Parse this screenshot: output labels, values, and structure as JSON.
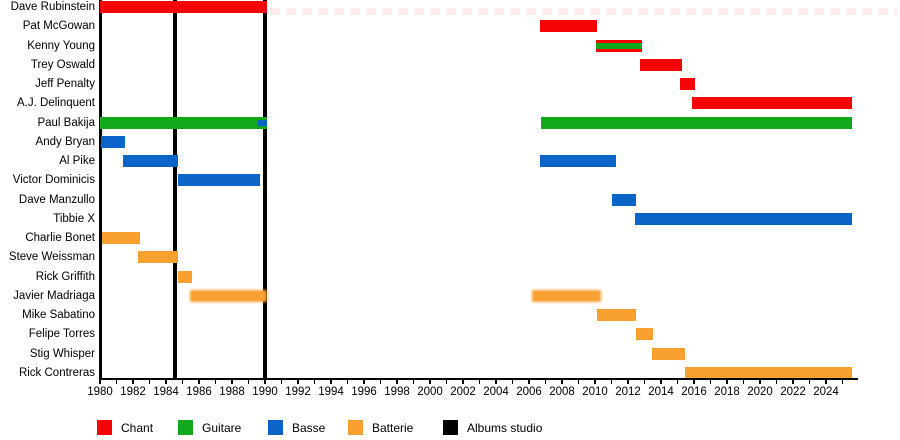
{
  "chart_data": {
    "type": "gantt",
    "description": "Band members timeline (French labels), roles vs years",
    "x_axis": {
      "min": 1980,
      "max": 2025.6,
      "tick_interval": 1,
      "label_interval": 2,
      "tick_labels": [
        "1980",
        "1982",
        "1984",
        "1986",
        "1988",
        "1990",
        "1992",
        "1994",
        "1996",
        "1998",
        "2000",
        "2002",
        "2004",
        "2006",
        "2008",
        "2010",
        "2012",
        "2014",
        "2016",
        "2018",
        "2020",
        "2022",
        "2024"
      ]
    },
    "colors": {
      "chant": "#f40404",
      "guitare": "#11a81c",
      "basse": "#0c64c8",
      "batterie": "#f8a030",
      "albums": "#000000",
      "ghost": "#fcecec"
    },
    "album_lines": [
      1984.55,
      1990
    ],
    "members": [
      {
        "name": "Dave Rubinstein",
        "segments": [
          {
            "role": "chant",
            "start": 1980,
            "end": 1990.15
          }
        ],
        "ghost": {
          "start": 1990.3,
          "end": 2028.3
        }
      },
      {
        "name": "Pat McGowan",
        "segments": [
          {
            "role": "chant",
            "start": 2006.65,
            "end": 2010.15
          }
        ]
      },
      {
        "name": "Kenny Young",
        "segments": [
          {
            "role": "chant_guitare",
            "start": 2010.05,
            "end": 2012.85
          }
        ]
      },
      {
        "name": "Trey Oswald",
        "segments": [
          {
            "role": "chant",
            "start": 2012.7,
            "end": 2015.3
          }
        ]
      },
      {
        "name": "Jeff Penalty",
        "segments": [
          {
            "role": "chant",
            "start": 2015.15,
            "end": 2016.05
          }
        ]
      },
      {
        "name": "A.J. Delinquent",
        "segments": [
          {
            "role": "chant",
            "start": 2015.9,
            "end": 2025.55
          }
        ]
      },
      {
        "name": "Paul Bakija",
        "segments": [
          {
            "role": "guitare",
            "start": 1980,
            "end": 1990.15
          },
          {
            "role": "basse",
            "start": 1989.55,
            "end": 1990.15,
            "inset": true
          },
          {
            "role": "guitare",
            "start": 2006.7,
            "end": 2025.55
          }
        ]
      },
      {
        "name": "Andy Bryan",
        "segments": [
          {
            "role": "basse",
            "start": 1980.05,
            "end": 1981.5
          }
        ]
      },
      {
        "name": "Al Pike",
        "segments": [
          {
            "role": "basse",
            "start": 1981.4,
            "end": 1984.75
          },
          {
            "role": "basse",
            "start": 2006.65,
            "end": 2011.25
          }
        ]
      },
      {
        "name": "Victor Dominicis",
        "segments": [
          {
            "role": "basse",
            "start": 1984.7,
            "end": 1989.7
          }
        ]
      },
      {
        "name": "Dave Manzullo",
        "segments": [
          {
            "role": "basse",
            "start": 2011.0,
            "end": 2012.5
          }
        ]
      },
      {
        "name": "Tibbie X",
        "segments": [
          {
            "role": "basse",
            "start": 2012.4,
            "end": 2025.55
          }
        ]
      },
      {
        "name": "Charlie Bonet",
        "segments": [
          {
            "role": "batterie",
            "start": 1980.1,
            "end": 1982.4
          }
        ]
      },
      {
        "name": "Steve Weissman",
        "segments": [
          {
            "role": "batterie",
            "start": 1982.3,
            "end": 1984.75
          }
        ]
      },
      {
        "name": "Rick Griffith",
        "segments": [
          {
            "role": "batterie",
            "start": 1984.7,
            "end": 1985.6
          }
        ]
      },
      {
        "name": "Javier Madriaga",
        "segments": [
          {
            "role": "batterie",
            "start": 1985.45,
            "end": 1990.15,
            "fuzzy": true
          },
          {
            "role": "batterie",
            "start": 2006.2,
            "end": 2010.35,
            "fuzzy": true
          }
        ]
      },
      {
        "name": "Mike Sabatino",
        "segments": [
          {
            "role": "batterie",
            "start": 2010.15,
            "end": 2012.5
          }
        ]
      },
      {
        "name": "Felipe Torres",
        "segments": [
          {
            "role": "batterie",
            "start": 2012.5,
            "end": 2013.5
          }
        ]
      },
      {
        "name": "Stig Whisper",
        "segments": [
          {
            "role": "batterie",
            "start": 2013.45,
            "end": 2015.45
          }
        ]
      },
      {
        "name": "Rick Contreras",
        "segments": [
          {
            "role": "batterie",
            "start": 2015.45,
            "end": 2025.55
          }
        ]
      }
    ],
    "legend": [
      {
        "label": "Chant",
        "color_key": "chant"
      },
      {
        "label": "Guitare",
        "color_key": "guitare"
      },
      {
        "label": "Basse",
        "color_key": "basse"
      },
      {
        "label": "Batterie",
        "color_key": "batterie"
      },
      {
        "label": "Albums studio",
        "color_key": "albums"
      }
    ]
  }
}
